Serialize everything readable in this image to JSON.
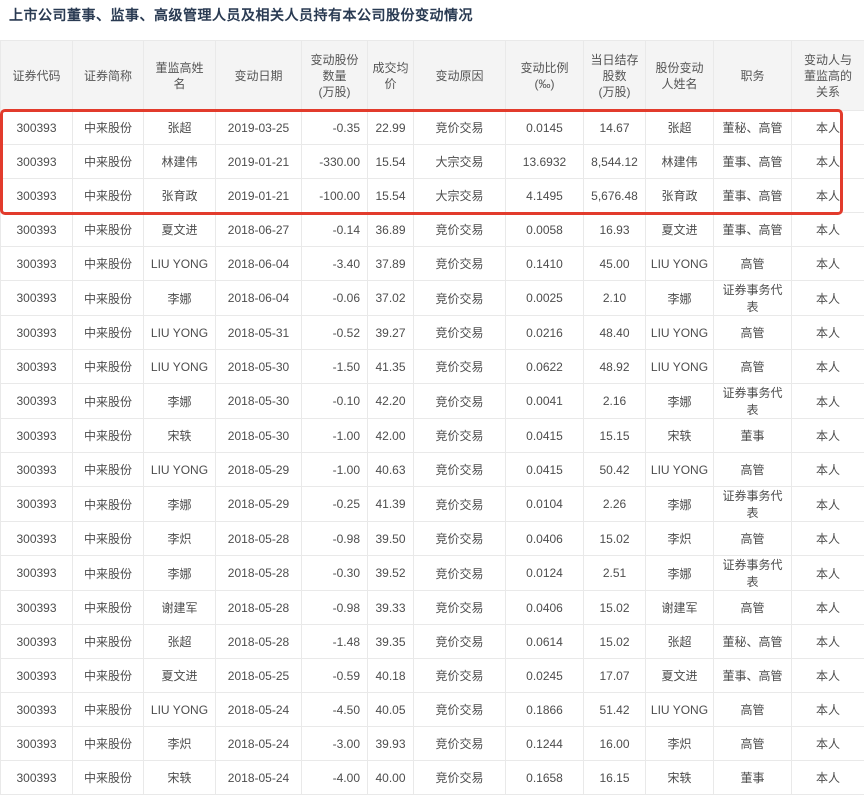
{
  "title": "上市公司董事、监事、高级管理人员及相关人员持有本公司股份变动情况",
  "colors": {
    "title_text": "#293a52",
    "highlight_border": "#e23b2c",
    "header_bg": "#f4f4f4",
    "grid_line": "#e9e9e9",
    "cell_text": "#4d4d4d",
    "header_text": "#555555"
  },
  "table": {
    "highlighted_row_count": 3,
    "columns": [
      {
        "key": "code",
        "label": "证券代码"
      },
      {
        "key": "short_name",
        "label": "证券简称"
      },
      {
        "key": "insider_name",
        "label": "董监高姓\n名"
      },
      {
        "key": "change_date",
        "label": "变动日期"
      },
      {
        "key": "change_shares",
        "label": "变动股份\n数量\n(万股)"
      },
      {
        "key": "avg_price",
        "label": "成交均\n价"
      },
      {
        "key": "reason",
        "label": "变动原因"
      },
      {
        "key": "change_ratio",
        "label": "变动比例\n(‰)"
      },
      {
        "key": "remaining_shares",
        "label": "当日结存\n股数\n(万股)"
      },
      {
        "key": "changer_name",
        "label": "股份变动\n人姓名"
      },
      {
        "key": "position",
        "label": "职务"
      },
      {
        "key": "relation",
        "label": "变动人与\n董监高的\n关系"
      }
    ],
    "rows": [
      [
        "300393",
        "中来股份",
        "张超",
        "2019-03-25",
        "-0.35",
        "22.99",
        "竞价交易",
        "0.0145",
        "14.67",
        "张超",
        "董秘、高管",
        "本人"
      ],
      [
        "300393",
        "中来股份",
        "林建伟",
        "2019-01-21",
        "-330.00",
        "15.54",
        "大宗交易",
        "13.6932",
        "8,544.12",
        "林建伟",
        "董事、高管",
        "本人"
      ],
      [
        "300393",
        "中来股份",
        "张育政",
        "2019-01-21",
        "-100.00",
        "15.54",
        "大宗交易",
        "4.1495",
        "5,676.48",
        "张育政",
        "董事、高管",
        "本人"
      ],
      [
        "300393",
        "中来股份",
        "夏文进",
        "2018-06-27",
        "-0.14",
        "36.89",
        "竞价交易",
        "0.0058",
        "16.93",
        "夏文进",
        "董事、高管",
        "本人"
      ],
      [
        "300393",
        "中来股份",
        "LIU YONG",
        "2018-06-04",
        "-3.40",
        "37.89",
        "竞价交易",
        "0.1410",
        "45.00",
        "LIU YONG",
        "高管",
        "本人"
      ],
      [
        "300393",
        "中来股份",
        "李娜",
        "2018-06-04",
        "-0.06",
        "37.02",
        "竞价交易",
        "0.0025",
        "2.10",
        "李娜",
        "证券事务代表",
        "本人"
      ],
      [
        "300393",
        "中来股份",
        "LIU YONG",
        "2018-05-31",
        "-0.52",
        "39.27",
        "竞价交易",
        "0.0216",
        "48.40",
        "LIU YONG",
        "高管",
        "本人"
      ],
      [
        "300393",
        "中来股份",
        "LIU YONG",
        "2018-05-30",
        "-1.50",
        "41.35",
        "竞价交易",
        "0.0622",
        "48.92",
        "LIU YONG",
        "高管",
        "本人"
      ],
      [
        "300393",
        "中来股份",
        "李娜",
        "2018-05-30",
        "-0.10",
        "42.20",
        "竞价交易",
        "0.0041",
        "2.16",
        "李娜",
        "证券事务代表",
        "本人"
      ],
      [
        "300393",
        "中来股份",
        "宋轶",
        "2018-05-30",
        "-1.00",
        "42.00",
        "竞价交易",
        "0.0415",
        "15.15",
        "宋轶",
        "董事",
        "本人"
      ],
      [
        "300393",
        "中来股份",
        "LIU YONG",
        "2018-05-29",
        "-1.00",
        "40.63",
        "竞价交易",
        "0.0415",
        "50.42",
        "LIU YONG",
        "高管",
        "本人"
      ],
      [
        "300393",
        "中来股份",
        "李娜",
        "2018-05-29",
        "-0.25",
        "41.39",
        "竞价交易",
        "0.0104",
        "2.26",
        "李娜",
        "证券事务代表",
        "本人"
      ],
      [
        "300393",
        "中来股份",
        "李炽",
        "2018-05-28",
        "-0.98",
        "39.50",
        "竞价交易",
        "0.0406",
        "15.02",
        "李炽",
        "高管",
        "本人"
      ],
      [
        "300393",
        "中来股份",
        "李娜",
        "2018-05-28",
        "-0.30",
        "39.52",
        "竞价交易",
        "0.0124",
        "2.51",
        "李娜",
        "证券事务代表",
        "本人"
      ],
      [
        "300393",
        "中来股份",
        "谢建军",
        "2018-05-28",
        "-0.98",
        "39.33",
        "竞价交易",
        "0.0406",
        "15.02",
        "谢建军",
        "高管",
        "本人"
      ],
      [
        "300393",
        "中来股份",
        "张超",
        "2018-05-28",
        "-1.48",
        "39.35",
        "竞价交易",
        "0.0614",
        "15.02",
        "张超",
        "董秘、高管",
        "本人"
      ],
      [
        "300393",
        "中来股份",
        "夏文进",
        "2018-05-25",
        "-0.59",
        "40.18",
        "竞价交易",
        "0.0245",
        "17.07",
        "夏文进",
        "董事、高管",
        "本人"
      ],
      [
        "300393",
        "中来股份",
        "LIU YONG",
        "2018-05-24",
        "-4.50",
        "40.05",
        "竞价交易",
        "0.1866",
        "51.42",
        "LIU YONG",
        "高管",
        "本人"
      ],
      [
        "300393",
        "中来股份",
        "李炽",
        "2018-05-24",
        "-3.00",
        "39.93",
        "竞价交易",
        "0.1244",
        "16.00",
        "李炽",
        "高管",
        "本人"
      ],
      [
        "300393",
        "中来股份",
        "宋轶",
        "2018-05-24",
        "-4.00",
        "40.00",
        "竞价交易",
        "0.1658",
        "16.15",
        "宋轶",
        "董事",
        "本人"
      ]
    ]
  }
}
